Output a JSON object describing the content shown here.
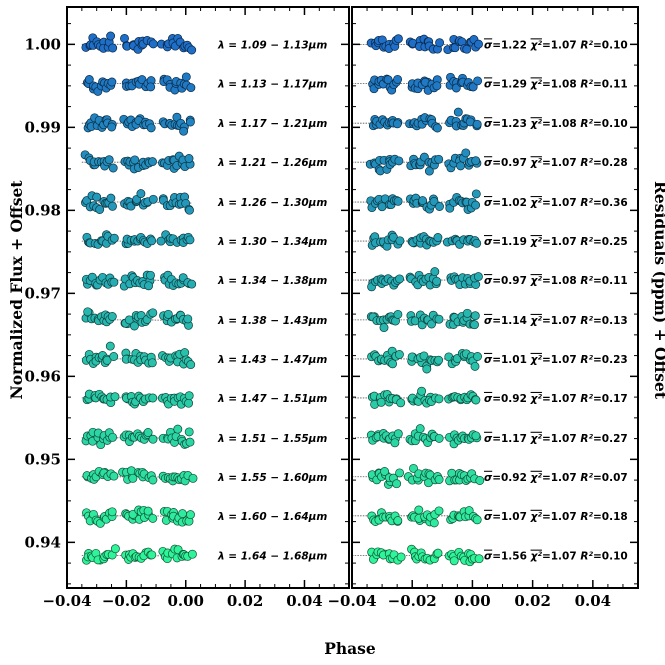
{
  "chart_data": {
    "type": "scatter",
    "xlabel": "Phase",
    "colors": {
      "top": "#1f6fc8",
      "bottom": "#2ff59a"
    },
    "panels": [
      {
        "name": "light-curves",
        "ylabel": "Normalized Flux + Offset",
        "xlim": [
          -0.04,
          0.055
        ],
        "ylim": [
          0.9345,
          1.0045
        ],
        "xticks": [
          -0.04,
          -0.02,
          0.0,
          0.02,
          0.04
        ],
        "xtick_labels": [
          "−0.04",
          "−0.02",
          "0.00",
          "0.02",
          "0.04"
        ],
        "yticks": [
          0.94,
          0.95,
          0.96,
          0.97,
          0.98,
          0.99,
          1.0
        ],
        "ytick_labels": [
          "0.94",
          "0.95",
          "0.96",
          "0.97",
          "0.98",
          "0.99",
          "1.00"
        ]
      },
      {
        "name": "residuals",
        "ylabel": "Residuals (ppm) + Offset",
        "xlim": [
          -0.04,
          0.055
        ],
        "xticks": [
          -0.04,
          -0.02,
          0.0,
          0.02,
          0.04
        ],
        "xtick_labels": [
          "−0.04",
          "−0.02",
          "0.00",
          "0.02",
          "0.04"
        ]
      }
    ],
    "visit_phases": [
      -0.029,
      -0.016,
      -0.003
    ],
    "channels": [
      {
        "wavelength": "λ = 1.09 − 1.13μm",
        "offset": 1.0,
        "sigma": "1.22",
        "chi2": "1.07",
        "r2": "0.10"
      },
      {
        "wavelength": "λ = 1.13 − 1.17μm",
        "offset": 0.9953,
        "sigma": "1.29",
        "chi2": "1.08",
        "r2": "0.11"
      },
      {
        "wavelength": "λ = 1.17 − 1.21μm",
        "offset": 0.9905,
        "sigma": "1.23",
        "chi2": "1.08",
        "r2": "0.10"
      },
      {
        "wavelength": "λ = 1.21 − 1.26μm",
        "offset": 0.9858,
        "sigma": "0.97",
        "chi2": "1.07",
        "r2": "0.28"
      },
      {
        "wavelength": "λ = 1.26 − 1.30μm",
        "offset": 0.981,
        "sigma": "1.02",
        "chi2": "1.07",
        "r2": "0.36"
      },
      {
        "wavelength": "λ = 1.30 − 1.34μm",
        "offset": 0.9763,
        "sigma": "1.19",
        "chi2": "1.07",
        "r2": "0.25"
      },
      {
        "wavelength": "λ = 1.34 − 1.38μm",
        "offset": 0.9716,
        "sigma": "0.97",
        "chi2": "1.08",
        "r2": "0.11"
      },
      {
        "wavelength": "λ = 1.38 − 1.43μm",
        "offset": 0.9668,
        "sigma": "1.14",
        "chi2": "1.07",
        "r2": "0.13"
      },
      {
        "wavelength": "λ = 1.43 − 1.47μm",
        "offset": 0.9621,
        "sigma": "1.01",
        "chi2": "1.07",
        "r2": "0.23"
      },
      {
        "wavelength": "λ = 1.47 − 1.51μm",
        "offset": 0.9574,
        "sigma": "0.92",
        "chi2": "1.07",
        "r2": "0.17"
      },
      {
        "wavelength": "λ = 1.51 − 1.55μm",
        "offset": 0.9526,
        "sigma": "1.17",
        "chi2": "1.07",
        "r2": "0.27"
      },
      {
        "wavelength": "λ = 1.55 − 1.60μm",
        "offset": 0.9479,
        "sigma": "0.92",
        "chi2": "1.07",
        "r2": "0.07"
      },
      {
        "wavelength": "λ = 1.60 − 1.64μm",
        "offset": 0.9432,
        "sigma": "1.07",
        "chi2": "1.07",
        "r2": "0.18"
      },
      {
        "wavelength": "λ = 1.64 − 1.68μm",
        "offset": 0.9384,
        "sigma": "1.56",
        "chi2": "1.07",
        "r2": "0.10"
      }
    ]
  }
}
